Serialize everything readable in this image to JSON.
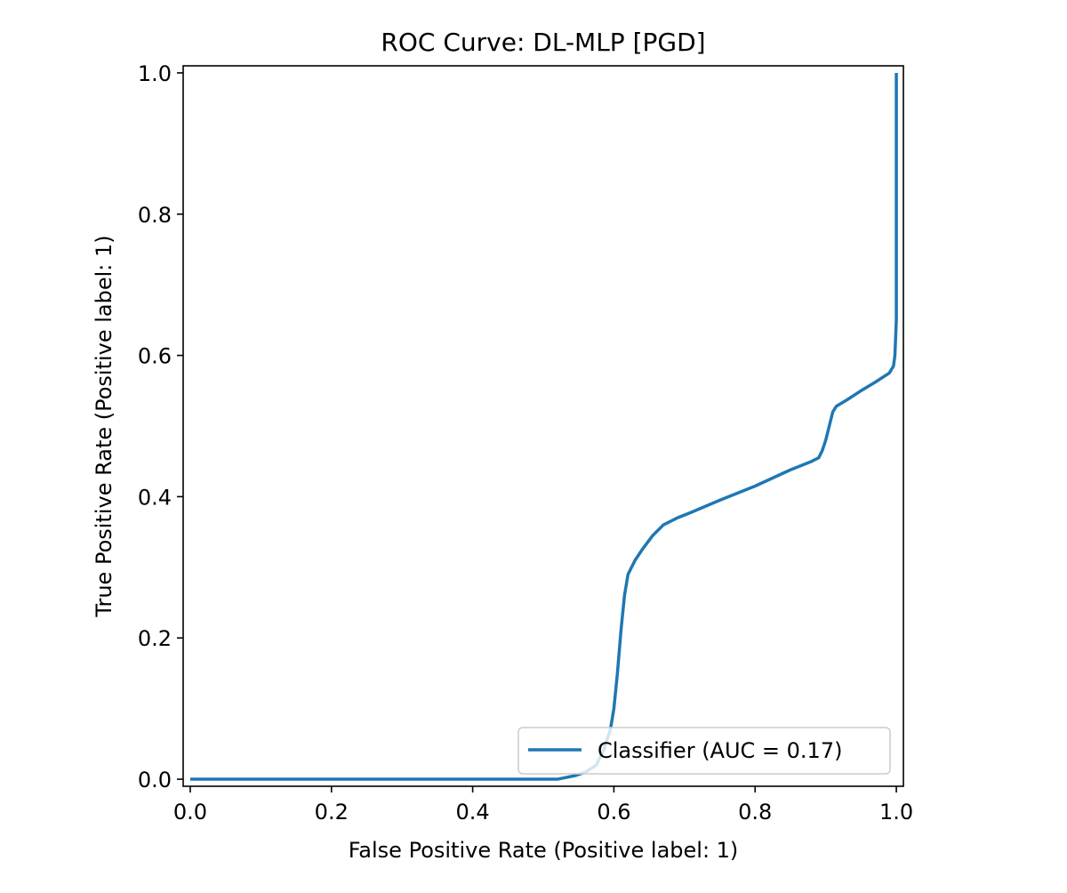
{
  "chart_data": {
    "type": "line",
    "title": "ROC Curve: DL-MLP [PGD]",
    "xlabel": "False Positive Rate (Positive label: 1)",
    "ylabel": "True Positive Rate (Positive label: 1)",
    "xlim": [
      -0.01,
      1.01
    ],
    "ylim": [
      -0.01,
      1.01
    ],
    "x_ticks": [
      0.0,
      0.2,
      0.4,
      0.6,
      0.8,
      1.0
    ],
    "x_tick_labels": [
      "0.0",
      "0.2",
      "0.4",
      "0.6",
      "0.8",
      "1.0"
    ],
    "y_ticks": [
      0.0,
      0.2,
      0.4,
      0.6,
      0.8,
      1.0
    ],
    "y_tick_labels": [
      "0.0",
      "0.2",
      "0.4",
      "0.6",
      "0.8",
      "1.0"
    ],
    "grid": false,
    "legend_position": "lower-right",
    "series": [
      {
        "name": "Classifier (AUC = 0.17)",
        "color": "#1f77b4",
        "x": [
          0.0,
          0.3,
          0.52,
          0.545,
          0.56,
          0.575,
          0.585,
          0.595,
          0.6,
          0.605,
          0.61,
          0.615,
          0.62,
          0.63,
          0.64,
          0.655,
          0.67,
          0.69,
          0.71,
          0.75,
          0.8,
          0.85,
          0.88,
          0.89,
          0.895,
          0.9,
          0.905,
          0.91,
          0.915,
          0.93,
          0.95,
          0.97,
          0.99,
          0.996,
          0.998,
          1.0,
          1.0
        ],
        "y": [
          0.0,
          0.0,
          0.0,
          0.005,
          0.01,
          0.02,
          0.04,
          0.07,
          0.1,
          0.15,
          0.21,
          0.26,
          0.29,
          0.31,
          0.325,
          0.345,
          0.36,
          0.37,
          0.378,
          0.395,
          0.415,
          0.438,
          0.45,
          0.455,
          0.465,
          0.48,
          0.5,
          0.52,
          0.528,
          0.537,
          0.55,
          0.562,
          0.575,
          0.585,
          0.6,
          0.65,
          1.0
        ]
      }
    ]
  }
}
